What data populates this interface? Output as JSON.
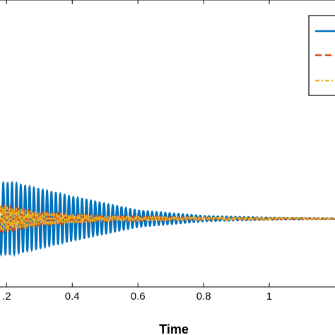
{
  "chart_data": {
    "type": "line",
    "xlabel": "Time",
    "ylabel": "",
    "title": "",
    "xlim": [
      0.18,
      1.2
    ],
    "ylim": [
      -1.0,
      3.2
    ],
    "xticks": [
      0.2,
      0.4,
      0.6,
      0.8,
      1.0
    ],
    "xtick_labels": [
      ".2",
      "0.4",
      "0.6",
      "0.8",
      "1"
    ],
    "grid": false,
    "legend": "top-right",
    "series": [
      {
        "color": "#0072BD",
        "style": "solid",
        "baseline": 0.0,
        "amplitude_at_x": [
          [
            0.18,
            0.52
          ],
          [
            0.22,
            0.52
          ],
          [
            0.4,
            0.32
          ],
          [
            0.6,
            0.12
          ],
          [
            0.8,
            0.04
          ],
          [
            1.0,
            0.015
          ],
          [
            1.2,
            0.005
          ]
        ],
        "frequency": 75
      },
      {
        "color": "#D95319",
        "style": "dashed",
        "baseline": 0.0,
        "amplitude_at_x": [
          [
            0.18,
            0.2
          ],
          [
            0.3,
            0.1
          ],
          [
            0.5,
            0.04
          ],
          [
            0.8,
            0.02
          ],
          [
            1.2,
            0.005
          ]
        ],
        "frequency": 110
      },
      {
        "color": "#EDB120",
        "style": "dashdot",
        "baseline": 0.0,
        "amplitude_at_x": [
          [
            0.18,
            0.18
          ],
          [
            0.3,
            0.08
          ],
          [
            0.5,
            0.03
          ],
          [
            0.8,
            0.015
          ],
          [
            1.2,
            0.004
          ]
        ],
        "frequency": 140
      }
    ]
  }
}
